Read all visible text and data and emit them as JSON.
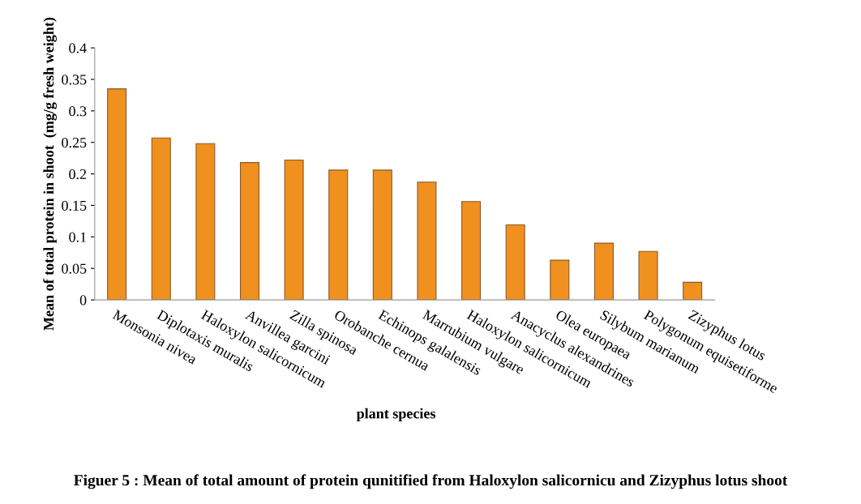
{
  "chart_data": {
    "type": "bar",
    "title": "Figuer 5 : Mean of total amount of protein qunitified from Haloxylon salicornicu and Zizyphus lotus shoot",
    "xlabel": "plant species",
    "ylabel": "Mean of total protein in shoot  (mg/g fresh weight)",
    "categories": [
      "Monsonia nivea",
      "Diplotaxis muralis",
      "Haloxylon salicornicum",
      "Anvillea garcini",
      "Zilla spinosa",
      "Orobanche cernua",
      "Echinops galalensis",
      "Marrubium vulgare",
      "Haloxylon salicornicum",
      "Anacyclus alexandrines",
      "Olea europaea",
      "Silybum marianum",
      "Polygonum equisetiforme",
      "Zizyphus lotus"
    ],
    "values": [
      0.335,
      0.257,
      0.248,
      0.218,
      0.222,
      0.206,
      0.206,
      0.187,
      0.156,
      0.119,
      0.063,
      0.09,
      0.077,
      0.028
    ],
    "color": "#f0901e",
    "ylim": [
      0,
      0.4
    ],
    "yticks": [
      0,
      0.05,
      0.1,
      0.15,
      0.2,
      0.25,
      0.3,
      0.35,
      0.4
    ],
    "grid": false
  }
}
